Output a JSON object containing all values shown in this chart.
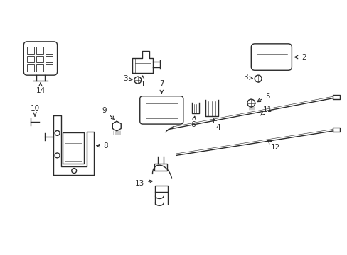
{
  "background_color": "#ffffff",
  "line_color": "#2a2a2a"
}
